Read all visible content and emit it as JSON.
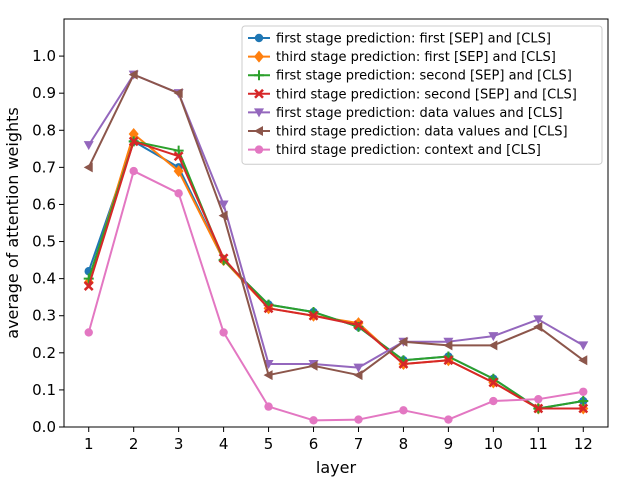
{
  "chart_data": {
    "type": "line",
    "title": "",
    "xlabel": "layer",
    "ylabel": "average of attention weights",
    "x": [
      1,
      2,
      3,
      4,
      5,
      6,
      7,
      8,
      9,
      10,
      11,
      12
    ],
    "xlim": [
      0.45,
      12.55
    ],
    "ylim": [
      0.0,
      1.1
    ],
    "yticks": [
      0.0,
      0.1,
      0.2,
      0.3,
      0.4,
      0.5,
      0.6,
      0.7,
      0.8,
      0.9,
      1.0
    ],
    "grid": false,
    "legend_position": "top-right",
    "series": [
      {
        "name": "first stage prediction: first [SEP] and [CLS]",
        "color": "#1f77b4",
        "marker": "circle",
        "values": [
          0.42,
          0.77,
          0.7,
          0.45,
          0.33,
          0.31,
          0.27,
          0.18,
          0.19,
          0.13,
          0.05,
          0.07
        ]
      },
      {
        "name": "third stage prediction: first [SEP] and [CLS]",
        "color": "#ff7f0e",
        "marker": "diamond",
        "values": [
          0.39,
          0.79,
          0.69,
          0.45,
          0.32,
          0.3,
          0.28,
          0.17,
          0.18,
          0.12,
          0.05,
          0.05
        ]
      },
      {
        "name": "first stage prediction: second [SEP] and [CLS]",
        "color": "#2ca02c",
        "marker": "plus",
        "values": [
          0.4,
          0.77,
          0.745,
          0.45,
          0.33,
          0.31,
          0.27,
          0.18,
          0.19,
          0.13,
          0.05,
          0.07
        ]
      },
      {
        "name": "third stage prediction: second [SEP] and [CLS]",
        "color": "#d62728",
        "marker": "x",
        "values": [
          0.38,
          0.77,
          0.73,
          0.455,
          0.32,
          0.3,
          0.275,
          0.17,
          0.18,
          0.12,
          0.05,
          0.05
        ]
      },
      {
        "name": "first stage prediction: data values and [CLS]",
        "color": "#9467bd",
        "marker": "triangle-down",
        "values": [
          0.76,
          0.95,
          0.9,
          0.6,
          0.17,
          0.17,
          0.16,
          0.23,
          0.23,
          0.245,
          0.29,
          0.22
        ]
      },
      {
        "name": "third stage prediction: data values and [CLS]",
        "color": "#8c564b",
        "marker": "triangle-left",
        "values": [
          0.7,
          0.95,
          0.9,
          0.57,
          0.14,
          0.165,
          0.14,
          0.23,
          0.22,
          0.22,
          0.27,
          0.18
        ]
      },
      {
        "name": "third stage prediction: context and [CLS]",
        "color": "#e377c2",
        "marker": "circle",
        "values": [
          0.255,
          0.69,
          0.63,
          0.255,
          0.055,
          0.018,
          0.02,
          0.045,
          0.02,
          0.07,
          0.075,
          0.095
        ]
      }
    ]
  }
}
